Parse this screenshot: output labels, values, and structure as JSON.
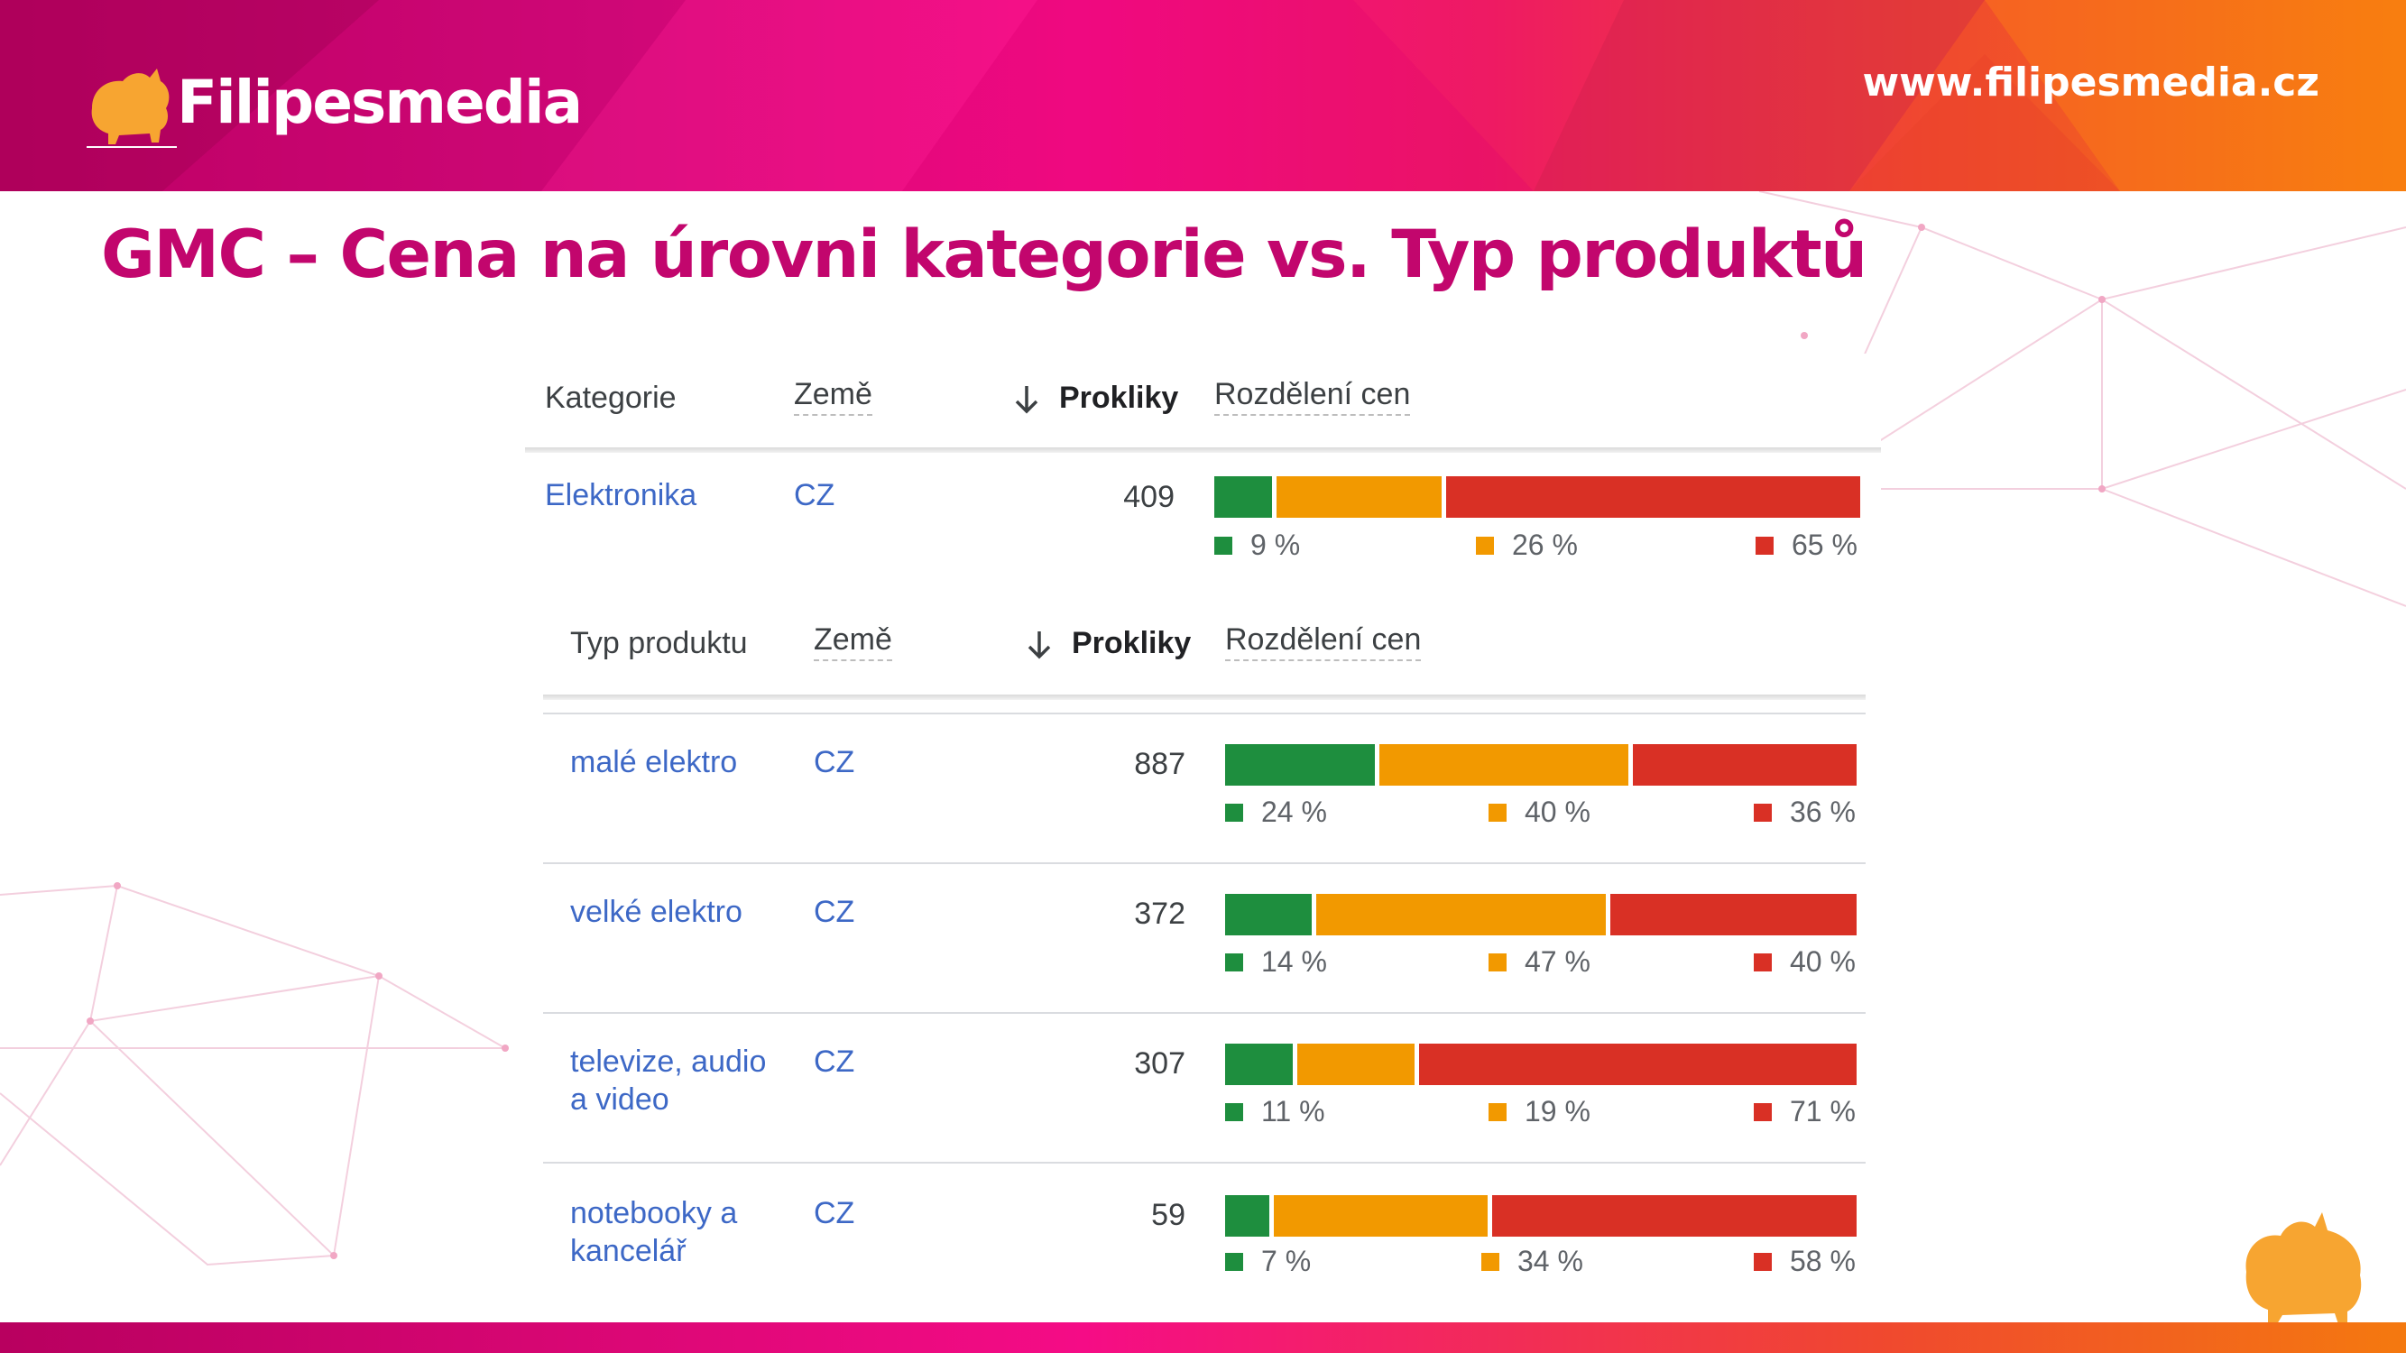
{
  "brand": {
    "logo_text": "Filipesmedia",
    "website": "www.filipesmedia.cz"
  },
  "slide": {
    "title": "GMC – Cena na úrovni kategorie vs. Typ produktů"
  },
  "colors": {
    "accent": "#c2066d",
    "cheap": "#1e8e3e",
    "mid": "#f29900",
    "expensive": "#d93025",
    "link": "#3d68c6"
  },
  "category_table": {
    "headers": {
      "category": "Kategorie",
      "country": "Země",
      "clicks": "Prokliky",
      "price_split": "Rozdělení cen"
    },
    "rows": [
      {
        "name": "Elektronika",
        "country": "CZ",
        "clicks": "409",
        "green": "9 %",
        "orange": "26 %",
        "red": "65 %",
        "g": 9,
        "o": 26,
        "r": 65
      }
    ]
  },
  "product_type_table": {
    "headers": {
      "type": "Typ produktu",
      "country": "Země",
      "clicks": "Prokliky",
      "price_split": "Rozdělení cen"
    },
    "rows": [
      {
        "line1": "malé elektro",
        "line2": "",
        "country": "CZ",
        "clicks": "887",
        "green": "24 %",
        "orange": "40 %",
        "red": "36 %",
        "g": 24,
        "o": 40,
        "r": 36
      },
      {
        "line1": "velké elektro",
        "line2": "",
        "country": "CZ",
        "clicks": "372",
        "green": "14 %",
        "orange": "47 %",
        "red": "40 %",
        "g": 14,
        "o": 47,
        "r": 40
      },
      {
        "line1": "televize, audio",
        "line2": "a video",
        "country": "CZ",
        "clicks": "307",
        "green": "11 %",
        "orange": "19 %",
        "red": "71 %",
        "g": 11,
        "o": 19,
        "r": 71
      },
      {
        "line1": "notebooky a",
        "line2": "kancelář",
        "country": "CZ",
        "clicks": "59",
        "green": "7 %",
        "orange": "34 %",
        "red": "58 %",
        "g": 7,
        "o": 34,
        "r": 58
      }
    ]
  }
}
